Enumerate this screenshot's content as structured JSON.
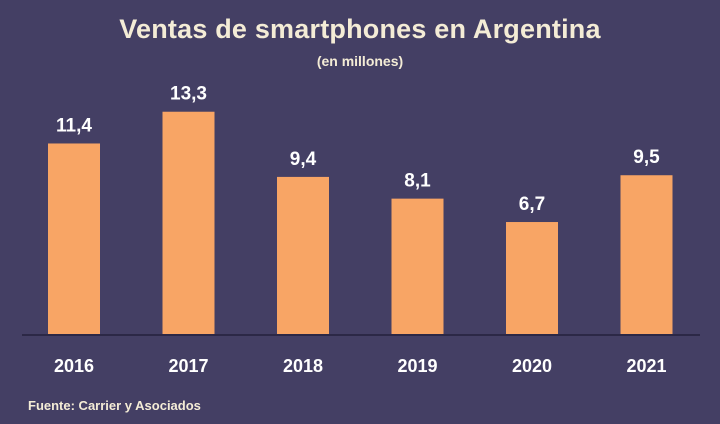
{
  "chart_data": {
    "type": "bar",
    "title": "Ventas de smartphones en Argentina",
    "subtitle": "(en millones)",
    "categories": [
      "2016",
      "2017",
      "2018",
      "2019",
      "2020",
      "2021"
    ],
    "values": [
      11.4,
      13.3,
      9.4,
      8.1,
      6.7,
      9.5
    ],
    "value_labels": [
      "11,4",
      "13,3",
      "9,4",
      "8,1",
      "6,7",
      "9,5"
    ],
    "ylim": [
      0,
      14.6
    ],
    "grid": false,
    "bar_color": "#f8a565",
    "axis_color": "#2c2846",
    "source": "Fuente: Carrier y Asociados"
  }
}
